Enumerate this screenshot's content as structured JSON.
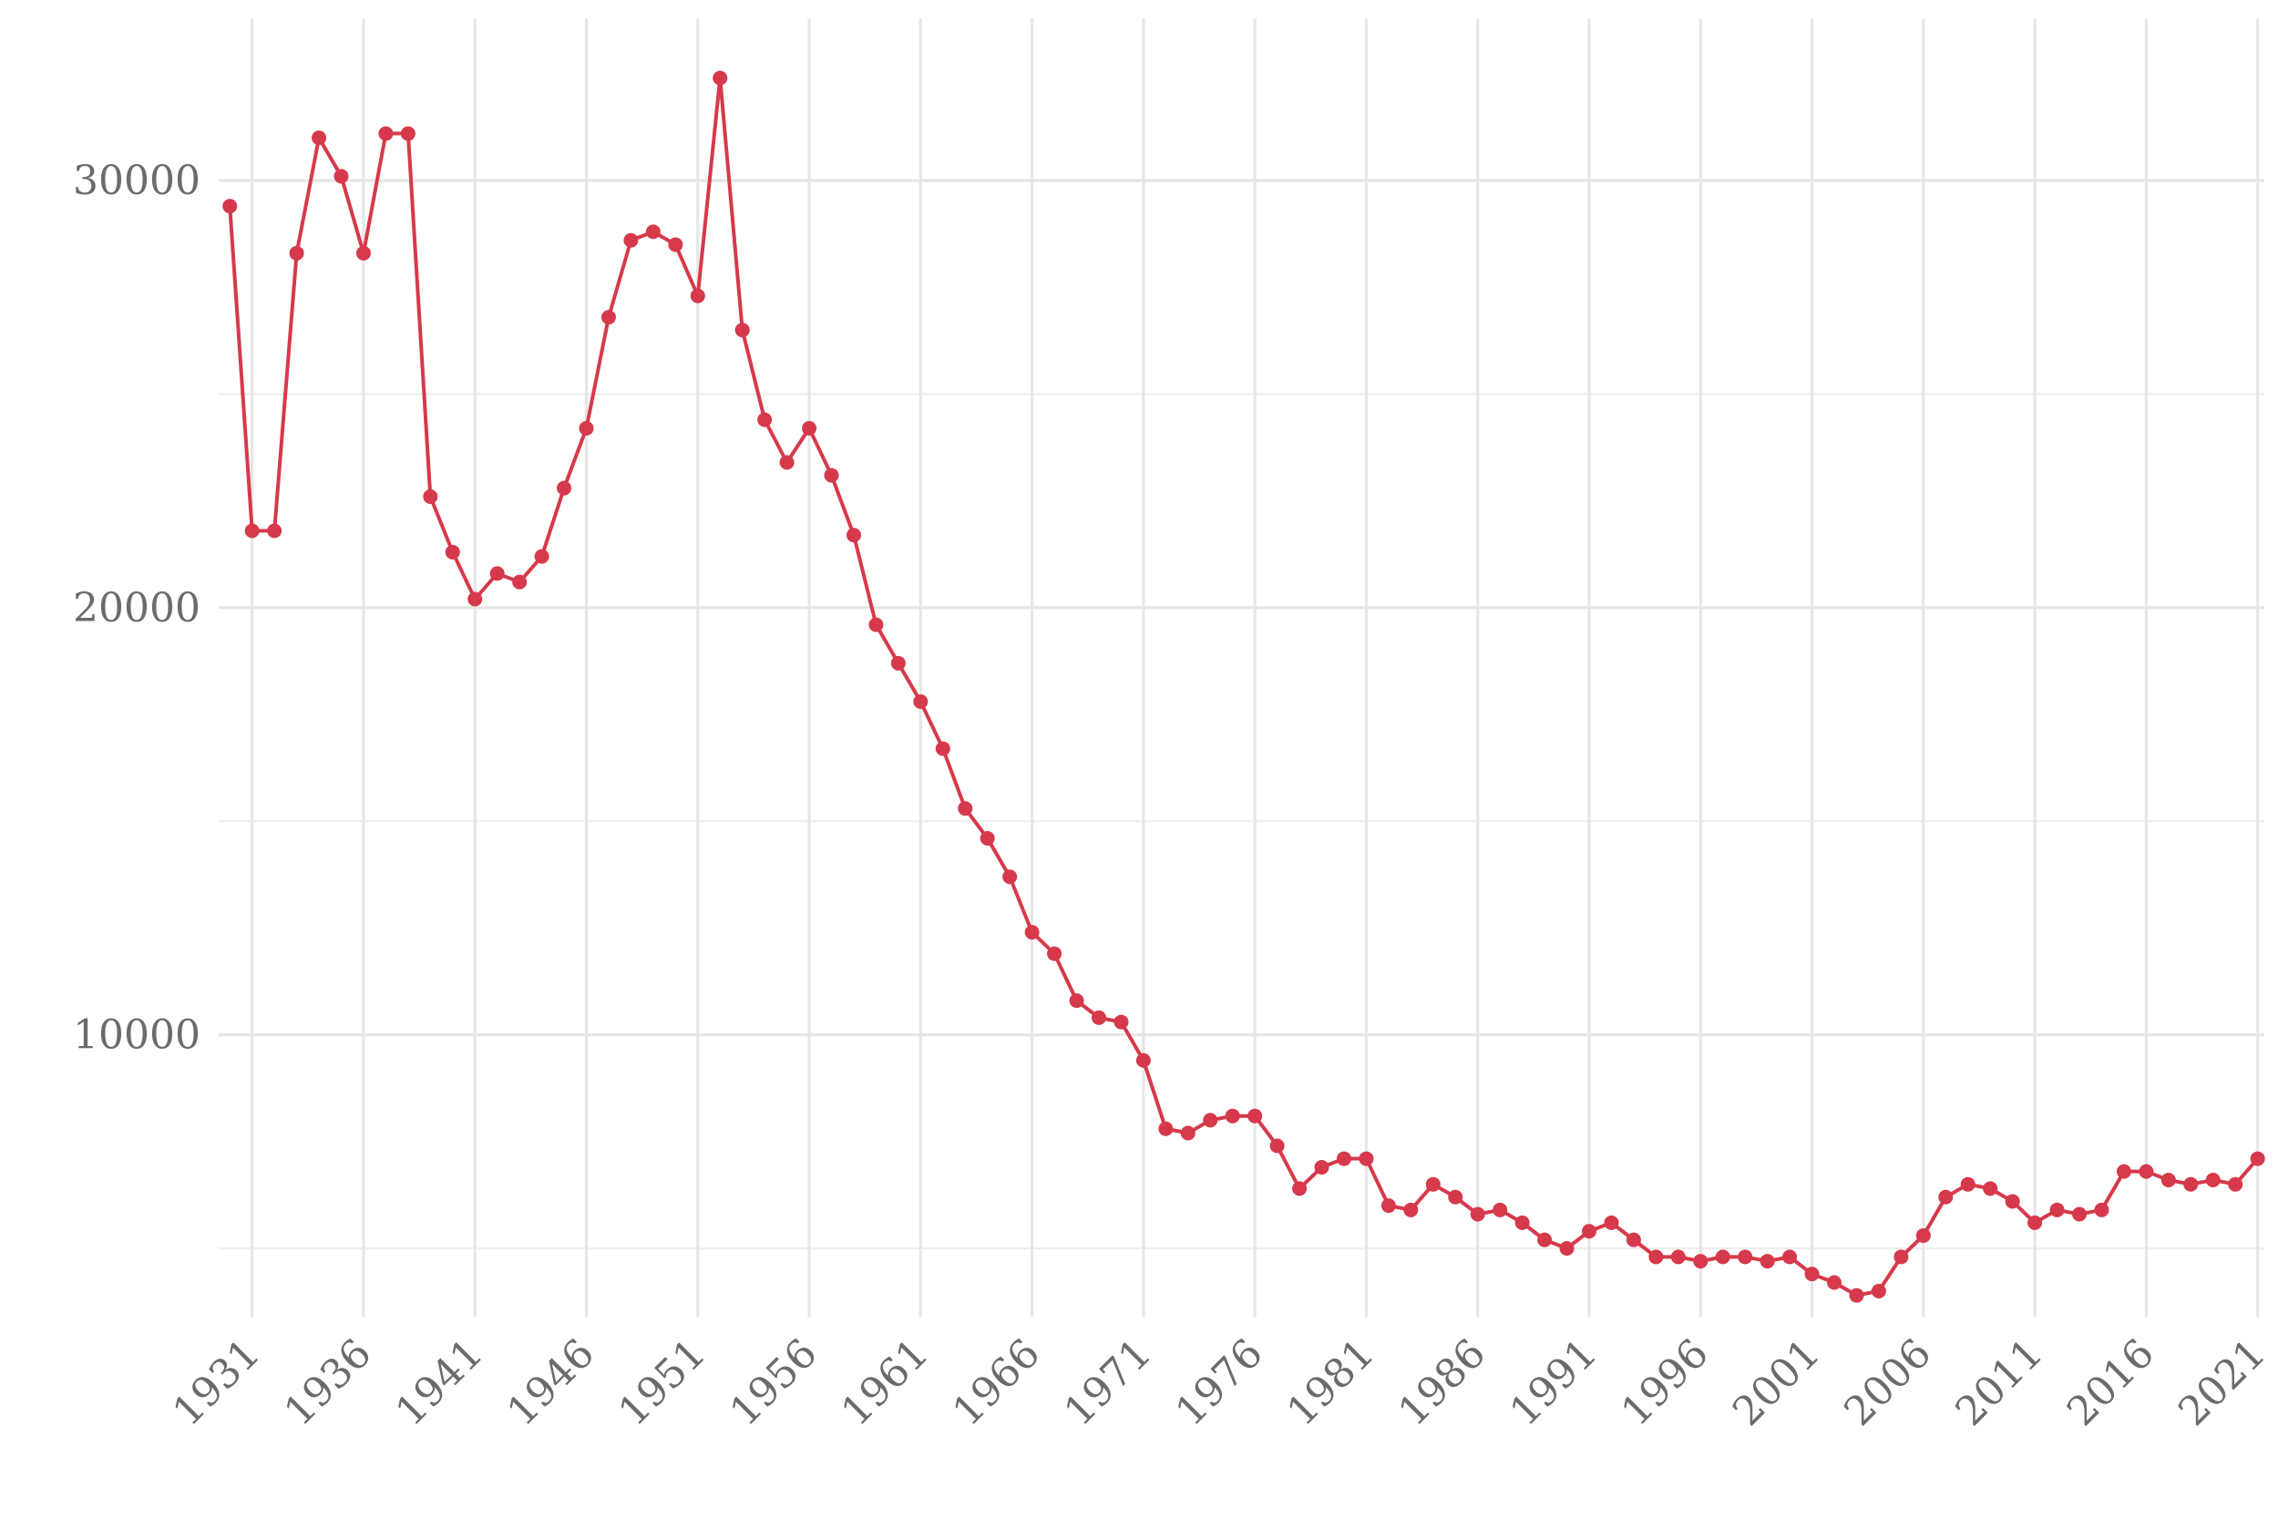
{
  "chart_data": {
    "type": "line",
    "title": "",
    "xlabel": "",
    "ylabel": "",
    "xlim": [
      1929.5,
      2021.3
    ],
    "ylim": [
      3400,
      33800
    ],
    "grid": true,
    "legend": "none",
    "x_ticks": [
      1931,
      1936,
      1941,
      1946,
      1951,
      1956,
      1961,
      1966,
      1971,
      1976,
      1981,
      1986,
      1991,
      1996,
      2001,
      2006,
      2011,
      2016,
      2021
    ],
    "y_ticks": [
      10000,
      20000,
      30000
    ],
    "y_minor_ticks": [
      5000,
      15000,
      25000
    ],
    "series": [
      {
        "color": "#d6394b",
        "x": [
          1930,
          1931,
          1932,
          1933,
          1934,
          1935,
          1936,
          1937,
          1938,
          1939,
          1940,
          1941,
          1942,
          1943,
          1944,
          1945,
          1946,
          1947,
          1948,
          1949,
          1950,
          1951,
          1952,
          1953,
          1954,
          1955,
          1956,
          1957,
          1958,
          1959,
          1960,
          1961,
          1962,
          1963,
          1964,
          1965,
          1966,
          1967,
          1968,
          1969,
          1970,
          1971,
          1972,
          1973,
          1974,
          1975,
          1976,
          1977,
          1978,
          1979,
          1980,
          1981,
          1982,
          1983,
          1984,
          1985,
          1986,
          1987,
          1988,
          1989,
          1990,
          1991,
          1992,
          1993,
          1994,
          1995,
          1996,
          1997,
          1998,
          1999,
          2000,
          2001,
          2002,
          2003,
          2004,
          2005,
          2006,
          2007,
          2008,
          2009,
          2010,
          2011,
          2012,
          2013,
          2014,
          2015,
          2016,
          2017,
          2018,
          2019,
          2020,
          2021
        ],
        "values": [
          29400,
          21800,
          21800,
          28300,
          31000,
          30100,
          28300,
          31100,
          31100,
          22600,
          21300,
          20200,
          20800,
          20600,
          21200,
          22800,
          24200,
          26800,
          28600,
          28800,
          28500,
          27300,
          32400,
          26500,
          24400,
          23400,
          24200,
          23100,
          21700,
          19600,
          18700,
          17800,
          16700,
          15300,
          14600,
          13700,
          12400,
          11900,
          10800,
          10400,
          10300,
          9400,
          7800,
          7700,
          8000,
          8100,
          8100,
          7400,
          6400,
          6900,
          7100,
          7100,
          6000,
          5900,
          6500,
          6200,
          5800,
          5900,
          5600,
          5200,
          5000,
          5400,
          5600,
          5200,
          4800,
          4800,
          4700,
          4800,
          4800,
          4700,
          4800,
          4400,
          4200,
          3900,
          4000,
          4800,
          5300,
          6200,
          6500,
          6400,
          6100,
          5600,
          5900,
          5800,
          5900,
          6800,
          6800,
          6600,
          6500,
          6600,
          6500,
          7100
        ]
      }
    ]
  }
}
